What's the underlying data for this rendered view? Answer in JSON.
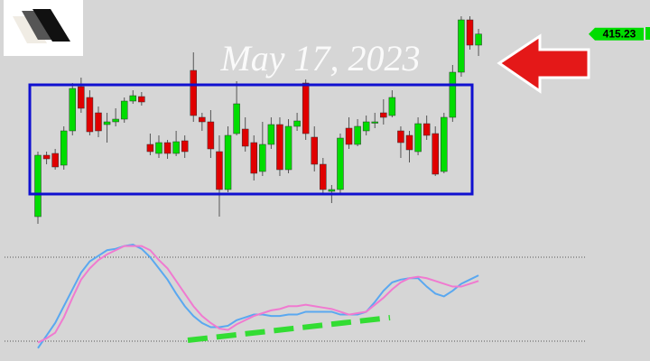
{
  "chart_data": {
    "type": "candlestick",
    "watermark": "May 17, 2023",
    "last_price": 415.23,
    "ylim": [
      394,
      419
    ],
    "up_color": "#00dd00",
    "down_color": "#e00000",
    "ohlc": [
      [
        395.0,
        402.2,
        394.2,
        401.8
      ],
      [
        401.8,
        402.2,
        400.8,
        401.4
      ],
      [
        402.0,
        402.5,
        400.2,
        400.5
      ],
      [
        400.7,
        405.0,
        400.2,
        404.5
      ],
      [
        404.5,
        409.8,
        404.0,
        409.2
      ],
      [
        409.4,
        410.4,
        406.5,
        407.0
      ],
      [
        408.2,
        409.0,
        404.0,
        404.4
      ],
      [
        406.5,
        407.2,
        403.8,
        404.5
      ],
      [
        405.2,
        406.5,
        403.2,
        405.5
      ],
      [
        405.5,
        407.0,
        405.0,
        405.8
      ],
      [
        405.8,
        408.2,
        405.4,
        407.8
      ],
      [
        407.8,
        409.0,
        407.5,
        408.4
      ],
      [
        408.3,
        408.8,
        407.3,
        407.7
      ],
      [
        403.0,
        404.2,
        401.8,
        402.2
      ],
      [
        402.0,
        404.0,
        401.5,
        403.2
      ],
      [
        403.2,
        403.5,
        401.4,
        402.0
      ],
      [
        402.0,
        404.5,
        401.7,
        403.3
      ],
      [
        403.4,
        404.0,
        401.5,
        402.2
      ],
      [
        411.2,
        413.2,
        405.5,
        406.2
      ],
      [
        406.0,
        406.5,
        404.5,
        405.5
      ],
      [
        405.5,
        406.8,
        401.5,
        402.5
      ],
      [
        402.2,
        404.0,
        395.0,
        398.0
      ],
      [
        398.0,
        405.0,
        397.7,
        404.0
      ],
      [
        404.2,
        410.0,
        404.0,
        407.5
      ],
      [
        404.7,
        406.0,
        402.2,
        402.8
      ],
      [
        403.2,
        404.0,
        399.0,
        399.8
      ],
      [
        400.0,
        405.5,
        399.5,
        403.0
      ],
      [
        403.0,
        406.0,
        402.5,
        405.2
      ],
      [
        405.2,
        406.0,
        399.5,
        400.2
      ],
      [
        400.2,
        405.8,
        399.8,
        405.0
      ],
      [
        405.0,
        406.5,
        404.5,
        405.6
      ],
      [
        409.8,
        410.2,
        403.5,
        404.2
      ],
      [
        403.8,
        405.0,
        400.0,
        400.8
      ],
      [
        400.8,
        401.5,
        397.5,
        398.0
      ],
      [
        397.8,
        398.5,
        396.5,
        398.0
      ],
      [
        398.0,
        404.2,
        397.5,
        403.7
      ],
      [
        404.8,
        406.0,
        402.5,
        403.0
      ],
      [
        403.0,
        405.8,
        402.8,
        405.0
      ],
      [
        404.5,
        406.2,
        404.0,
        405.5
      ],
      [
        405.4,
        406.5,
        404.8,
        405.5
      ],
      [
        406.5,
        408.0,
        405.2,
        406.0
      ],
      [
        406.2,
        409.0,
        406.0,
        408.2
      ],
      [
        404.5,
        405.0,
        401.5,
        403.2
      ],
      [
        404.0,
        404.5,
        401.0,
        402.4
      ],
      [
        402.2,
        406.0,
        401.8,
        405.3
      ],
      [
        405.3,
        406.2,
        403.5,
        404.0
      ],
      [
        404.2,
        405.0,
        399.5,
        399.7
      ],
      [
        400.0,
        406.5,
        399.8,
        406.0
      ],
      [
        406.0,
        411.8,
        405.5,
        411.0
      ],
      [
        411.0,
        417.2,
        410.5,
        416.8
      ],
      [
        416.8,
        417.2,
        413.5,
        414.0
      ],
      [
        414.0,
        415.8,
        412.8,
        415.23
      ]
    ],
    "oscillator": {
      "ylim": [
        10,
        100
      ],
      "levels": [
        80,
        20
      ],
      "series": [
        {
          "color": "#5aa8f0",
          "values": [
            15,
            24,
            33,
            45,
            57,
            69,
            77,
            81,
            85,
            86,
            88,
            89,
            86,
            80,
            72,
            64,
            54,
            45,
            38,
            33,
            30,
            30,
            31,
            35,
            37,
            39,
            39,
            38,
            38,
            39,
            39,
            41,
            41,
            41,
            41,
            39,
            39,
            39,
            41,
            48,
            56,
            62,
            64,
            65,
            65,
            59,
            54,
            52,
            56,
            61,
            64,
            67
          ]
        },
        {
          "color": "#f07ad0",
          "values": [
            19,
            22,
            26,
            37,
            51,
            64,
            72,
            78,
            82,
            85,
            88,
            88,
            88,
            85,
            78,
            72,
            63,
            54,
            45,
            38,
            33,
            29,
            28,
            32,
            35,
            38,
            40,
            42,
            43,
            45,
            45,
            46,
            45,
            44,
            43,
            41,
            39,
            40,
            41,
            46,
            51,
            57,
            62,
            65,
            66,
            65,
            63,
            61,
            59,
            59,
            61,
            63
          ]
        }
      ]
    }
  }
}
